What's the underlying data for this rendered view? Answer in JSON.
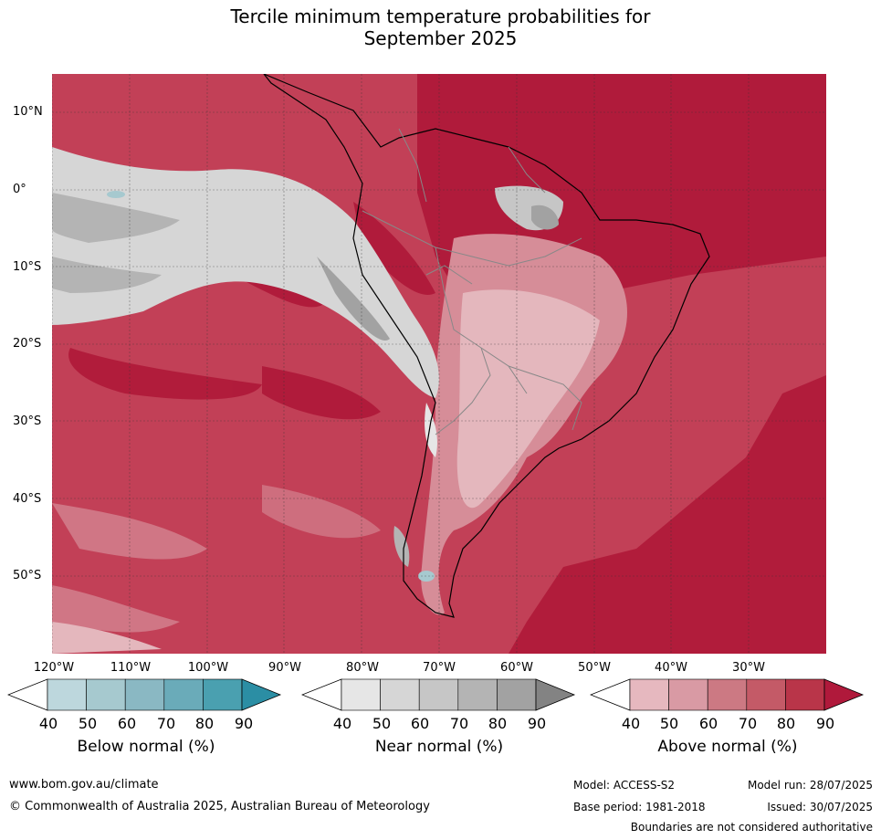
{
  "title_line1": "Tercile minimum temperature probabilities for",
  "title_line2": "September 2025",
  "lat_labels": [
    "10°N",
    "0°",
    "10°S",
    "20°S",
    "30°S",
    "40°S",
    "50°S"
  ],
  "lon_labels": [
    "120°W",
    "110°W",
    "100°W",
    "90°W",
    "80°W",
    "70°W",
    "60°W",
    "50°W",
    "40°W",
    "30°W"
  ],
  "colorbars": [
    {
      "title": "Below normal (%)",
      "ticks": [
        "40",
        "50",
        "60",
        "70",
        "80",
        "90"
      ],
      "colors": [
        "#ffffff",
        "#bdd7dd",
        "#a6c9cf",
        "#8ab8c3",
        "#6aabb9",
        "#4aa0b0",
        "#2b8ea4"
      ]
    },
    {
      "title": "Near normal (%)",
      "ticks": [
        "40",
        "50",
        "60",
        "70",
        "80",
        "90"
      ],
      "colors": [
        "#ffffff",
        "#e6e6e6",
        "#d6d6d6",
        "#c6c6c6",
        "#b4b4b4",
        "#a2a2a2",
        "#838383"
      ]
    },
    {
      "title": "Above normal (%)",
      "ticks": [
        "40",
        "50",
        "60",
        "70",
        "80",
        "90"
      ],
      "colors": [
        "#ffffff",
        "#e6b8bf",
        "#d99aa4",
        "#cc7983",
        "#c45a67",
        "#b93549",
        "#b0193b"
      ]
    }
  ],
  "footer": {
    "url": "www.bom.gov.au/climate",
    "copyright": "© Commonwealth of Australia 2025, Australian Bureau of Meteorology",
    "model": "Model: ACCESS-S2",
    "model_run": "Model run: 28/07/2025",
    "base_period": "Base period: 1981-2018",
    "issued": "Issued: 30/07/2025",
    "boundaries": "Boundaries are not considered authoritative"
  }
}
